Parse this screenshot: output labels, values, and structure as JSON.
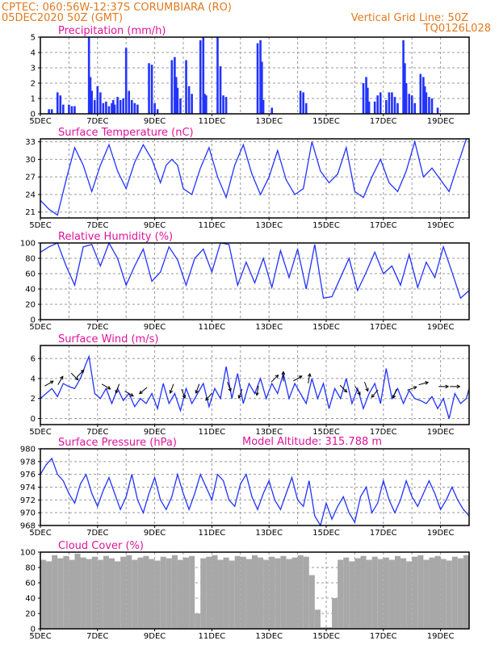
{
  "header": {
    "line1_left": "CPTEC:   060:56W-12:37S   CORUMBIARA (RO)",
    "line2_left": "05DEC2020 50Z (GMT)",
    "line1_right": "Vertical Grid Line: 50Z",
    "line2_right": "TQ0126L028",
    "model_altitude": "Model Altitude: 315.788 m"
  },
  "colors": {
    "header": "#e07a1f",
    "title": "#e0149a",
    "series": "#2233ff",
    "cloud": "#a8a8a8",
    "frame": "#000000",
    "grid": "#999999"
  },
  "chart_data": [
    {
      "type": "bar",
      "title": "Precipitation (mm/h)",
      "x_unit": "day of DEC 2020",
      "x_range": [
        5,
        20
      ],
      "x_ticks": [
        "5DEC",
        "7DEC",
        "9DEC",
        "11DEC",
        "13DEC",
        "15DEC",
        "17DEC",
        "19DEC"
      ],
      "y_ticks": [
        "0",
        "1",
        "2",
        "3",
        "4",
        "5"
      ],
      "ylim": [
        0,
        5
      ],
      "x": [
        5.3,
        5.4,
        5.6,
        5.7,
        5.8,
        6.0,
        6.1,
        6.2,
        6.7,
        6.75,
        6.8,
        6.9,
        7.0,
        7.1,
        7.2,
        7.3,
        7.4,
        7.5,
        7.55,
        7.6,
        7.7,
        7.8,
        7.9,
        8.0,
        8.1,
        8.2,
        8.3,
        8.4,
        8.8,
        8.9,
        9.0,
        9.1,
        9.6,
        9.7,
        9.75,
        9.8,
        9.9,
        10.1,
        10.2,
        10.3,
        10.6,
        10.7,
        10.75,
        10.8,
        11.2,
        11.3,
        11.4,
        11.5,
        12.6,
        12.7,
        12.75,
        12.8,
        13.1,
        14.1,
        14.2,
        14.3,
        16.3,
        16.4,
        16.45,
        16.5,
        16.7,
        16.8,
        16.9,
        17.1,
        17.2,
        17.3,
        17.4,
        17.5,
        17.7,
        17.75,
        17.8,
        17.9,
        18.0,
        18.1,
        18.3,
        18.4,
        18.45,
        18.5,
        18.6,
        18.7,
        18.9
      ],
      "values": [
        0.3,
        0.3,
        1.4,
        1.2,
        0.6,
        0.6,
        0.5,
        0.5,
        5.0,
        2.4,
        1.5,
        0.9,
        1.8,
        1.4,
        0.7,
        0.8,
        0.5,
        0.7,
        0.9,
        0.6,
        1.1,
        0.9,
        1.0,
        4.3,
        1.5,
        0.9,
        0.7,
        0.6,
        3.3,
        3.2,
        0.7,
        0.3,
        3.5,
        3.7,
        2.4,
        1.7,
        1.0,
        3.5,
        1.8,
        1.3,
        4.8,
        5.0,
        1.3,
        1.2,
        5.0,
        3.1,
        1.2,
        1.1,
        4.6,
        4.8,
        3.4,
        0.9,
        0.4,
        1.5,
        1.4,
        0.7,
        2.0,
        2.4,
        1.7,
        0.8,
        0.8,
        1.2,
        1.4,
        0.9,
        1.4,
        1.4,
        1.1,
        0.7,
        4.8,
        3.3,
        2.0,
        1.3,
        1.2,
        0.7,
        2.6,
        2.4,
        1.8,
        1.4,
        1.1,
        1.0,
        0.4
      ]
    },
    {
      "type": "line",
      "title": "Surface Temperature (nC)",
      "x_unit": "day of DEC 2020",
      "x_range": [
        5,
        20
      ],
      "x_ticks": [
        "5DEC",
        "7DEC",
        "9DEC",
        "11DEC",
        "13DEC",
        "15DEC",
        "17DEC",
        "19DEC"
      ],
      "y_ticks": [
        "21",
        "24",
        "27",
        "30",
        "33"
      ],
      "ylim": [
        20,
        33.5
      ],
      "x": [
        5.0,
        5.3,
        5.6,
        5.9,
        6.2,
        6.5,
        6.8,
        7.1,
        7.4,
        7.7,
        8.0,
        8.3,
        8.6,
        8.9,
        9.2,
        9.4,
        9.6,
        9.8,
        10.0,
        10.3,
        10.6,
        10.9,
        11.2,
        11.5,
        11.8,
        12.1,
        12.4,
        12.7,
        13.0,
        13.3,
        13.6,
        13.9,
        14.2,
        14.5,
        14.8,
        15.1,
        15.4,
        15.7,
        16.0,
        16.3,
        16.6,
        16.9,
        17.2,
        17.5,
        17.8,
        18.1,
        18.4,
        18.7,
        19.0,
        19.3,
        19.6,
        19.9,
        20.0
      ],
      "values": [
        23.0,
        21.5,
        20.5,
        26.5,
        32.0,
        29.0,
        24.5,
        29.0,
        32.5,
        28.0,
        25.0,
        29.5,
        32.5,
        30.0,
        26.0,
        29.0,
        30.0,
        29.0,
        25.0,
        24.0,
        28.5,
        32.0,
        27.0,
        23.5,
        29.0,
        32.5,
        27.5,
        24.0,
        27.0,
        31.5,
        26.5,
        24.0,
        25.0,
        33.0,
        28.0,
        26.0,
        27.5,
        32.0,
        24.5,
        23.5,
        27.0,
        30.0,
        26.0,
        24.5,
        28.0,
        33.0,
        27.0,
        28.5,
        26.5,
        24.5,
        29.0,
        33.5,
        33.5
      ]
    },
    {
      "type": "line",
      "title": "Relative Humidity (%)",
      "x_unit": "day of DEC 2020",
      "x_range": [
        5,
        20
      ],
      "x_ticks": [
        "5DEC",
        "7DEC",
        "9DEC",
        "11DEC",
        "13DEC",
        "15DEC",
        "17DEC",
        "19DEC"
      ],
      "y_ticks": [
        "0",
        "20",
        "40",
        "60",
        "80",
        "100"
      ],
      "ylim": [
        0,
        100
      ],
      "x": [
        5.0,
        5.3,
        5.6,
        5.9,
        6.2,
        6.5,
        6.8,
        7.1,
        7.4,
        7.7,
        8.0,
        8.3,
        8.6,
        8.9,
        9.2,
        9.5,
        9.8,
        10.1,
        10.4,
        10.7,
        11.0,
        11.3,
        11.6,
        11.9,
        12.2,
        12.5,
        12.8,
        13.1,
        13.4,
        13.7,
        14.0,
        14.3,
        14.6,
        14.9,
        15.2,
        15.5,
        15.8,
        16.1,
        16.4,
        16.7,
        17.0,
        17.3,
        17.6,
        17.9,
        18.2,
        18.5,
        18.8,
        19.1,
        19.4,
        19.7,
        20.0
      ],
      "values": [
        88,
        95,
        100,
        70,
        45,
        95,
        98,
        70,
        100,
        80,
        45,
        70,
        92,
        50,
        62,
        95,
        78,
        45,
        80,
        92,
        62,
        100,
        98,
        45,
        75,
        48,
        80,
        42,
        90,
        55,
        92,
        40,
        98,
        28,
        30,
        55,
        80,
        38,
        62,
        88,
        60,
        70,
        45,
        85,
        42,
        75,
        55,
        95,
        62,
        28,
        38
      ]
    },
    {
      "type": "line",
      "title": "Surface Wind (m/s)",
      "x_unit": "day of DEC 2020",
      "x_range": [
        5,
        20
      ],
      "x_ticks": [
        "5DEC",
        "7DEC",
        "9DEC",
        "11DEC",
        "13DEC",
        "15DEC",
        "17DEC",
        "19DEC"
      ],
      "y_ticks": [
        "0",
        "2",
        "4",
        "6"
      ],
      "ylim": [
        -0.6,
        7.3
      ],
      "x": [
        5.0,
        5.2,
        5.4,
        5.6,
        5.8,
        6.0,
        6.2,
        6.4,
        6.6,
        6.7,
        6.9,
        7.1,
        7.3,
        7.5,
        7.7,
        7.9,
        8.1,
        8.3,
        8.5,
        8.7,
        8.9,
        9.1,
        9.3,
        9.5,
        9.7,
        9.9,
        10.1,
        10.3,
        10.5,
        10.7,
        10.9,
        11.1,
        11.3,
        11.5,
        11.7,
        11.9,
        12.1,
        12.3,
        12.5,
        12.7,
        12.9,
        13.1,
        13.3,
        13.5,
        13.7,
        13.9,
        14.1,
        14.3,
        14.5,
        14.7,
        14.9,
        15.1,
        15.3,
        15.5,
        15.7,
        15.9,
        16.1,
        16.3,
        16.5,
        16.7,
        16.9,
        17.1,
        17.3,
        17.5,
        17.7,
        17.9,
        18.1,
        18.3,
        18.5,
        18.7,
        18.9,
        19.1,
        19.3,
        19.5,
        19.7,
        19.9,
        20.0
      ],
      "values": [
        2.0,
        2.5,
        3.0,
        2.2,
        3.5,
        3.2,
        3.0,
        4.0,
        5.5,
        6.2,
        2.5,
        2.0,
        3.0,
        1.5,
        3.0,
        1.8,
        2.5,
        1.2,
        2.0,
        1.5,
        2.5,
        1.0,
        3.5,
        1.5,
        2.5,
        0.8,
        3.0,
        1.5,
        2.5,
        3.5,
        1.2,
        3.0,
        2.0,
        5.2,
        2.0,
        4.5,
        1.5,
        3.5,
        2.5,
        4.0,
        2.0,
        3.5,
        2.5,
        4.5,
        2.0,
        3.5,
        2.5,
        1.5,
        4.0,
        2.0,
        3.5,
        1.0,
        3.0,
        2.0,
        4.0,
        1.5,
        3.0,
        1.0,
        2.5,
        3.5,
        1.5,
        5.0,
        2.0,
        3.0,
        1.5,
        2.8,
        2.0,
        1.8,
        1.5,
        2.2,
        1.0,
        2.0,
        0.0,
        2.5,
        1.5,
        2.0,
        3.0
      ]
    },
    {
      "type": "line",
      "title": "Surface Pressure (hPa)",
      "x_unit": "day of DEC 2020",
      "x_range": [
        5,
        20
      ],
      "x_ticks": [
        "5DEC",
        "7DEC",
        "9DEC",
        "11DEC",
        "13DEC",
        "15DEC",
        "17DEC",
        "19DEC"
      ],
      "y_ticks": [
        "968",
        "970",
        "972",
        "974",
        "976",
        "978",
        "980"
      ],
      "ylim": [
        968,
        980
      ],
      "x": [
        5.0,
        5.2,
        5.4,
        5.6,
        5.8,
        6.0,
        6.2,
        6.4,
        6.6,
        6.8,
        7.0,
        7.2,
        7.4,
        7.6,
        7.8,
        8.0,
        8.2,
        8.4,
        8.6,
        8.8,
        9.0,
        9.2,
        9.4,
        9.6,
        9.8,
        10.0,
        10.2,
        10.4,
        10.6,
        10.8,
        11.0,
        11.2,
        11.4,
        11.6,
        11.8,
        12.0,
        12.2,
        12.4,
        12.6,
        12.8,
        13.0,
        13.2,
        13.4,
        13.6,
        13.8,
        14.0,
        14.2,
        14.4,
        14.6,
        14.8,
        15.0,
        15.2,
        15.4,
        15.6,
        15.8,
        16.0,
        16.2,
        16.4,
        16.6,
        16.8,
        17.0,
        17.2,
        17.4,
        17.6,
        17.8,
        18.0,
        18.2,
        18.4,
        18.6,
        18.8,
        19.0,
        19.2,
        19.4,
        19.6,
        19.8,
        20.0
      ],
      "values": [
        976,
        977.5,
        978.5,
        976,
        975,
        973,
        971.5,
        974.5,
        976,
        973,
        971,
        973.5,
        975.5,
        973,
        970.5,
        972.5,
        976,
        972,
        970,
        973,
        975.5,
        972,
        970.5,
        972.5,
        976,
        973,
        970.5,
        973,
        976,
        974,
        972,
        976,
        975,
        972,
        971,
        974.5,
        976,
        972.5,
        970.5,
        973,
        975,
        972,
        970.5,
        973,
        975.5,
        972,
        971,
        975,
        969.5,
        968,
        971.5,
        969,
        971,
        972.5,
        970,
        968.5,
        972.5,
        974,
        970,
        971.5,
        975,
        972,
        970,
        972,
        975,
        972.5,
        971,
        973,
        975,
        973,
        970.5,
        972,
        974,
        972,
        970.5,
        969.5
      ]
    },
    {
      "type": "bar",
      "title": "Cloud Cover (%)",
      "x_unit": "day of DEC 2020",
      "x_range": [
        5,
        20
      ],
      "x_ticks": [
        "5DEC",
        "7DEC",
        "9DEC",
        "11DEC",
        "13DEC",
        "15DEC",
        "17DEC",
        "19DEC"
      ],
      "y_ticks": [
        "0",
        "20",
        "40",
        "60",
        "80",
        "100"
      ],
      "ylim": [
        0,
        100
      ],
      "x": [
        5.0,
        5.2,
        5.4,
        5.6,
        5.8,
        6.0,
        6.2,
        6.4,
        6.6,
        6.8,
        7.0,
        7.2,
        7.4,
        7.6,
        7.8,
        8.0,
        8.2,
        8.4,
        8.6,
        8.8,
        9.0,
        9.2,
        9.4,
        9.6,
        9.8,
        10.0,
        10.2,
        10.4,
        10.6,
        10.8,
        11.0,
        11.2,
        11.4,
        11.6,
        11.8,
        12.0,
        12.2,
        12.4,
        12.6,
        12.8,
        13.0,
        13.2,
        13.4,
        13.6,
        13.8,
        14.0,
        14.2,
        14.4,
        14.6,
        14.8,
        15.0,
        15.2,
        15.4,
        15.6,
        15.8,
        16.0,
        16.2,
        16.4,
        16.6,
        16.8,
        17.0,
        17.2,
        17.4,
        17.6,
        17.8,
        18.0,
        18.2,
        18.4,
        18.6,
        18.8,
        19.0,
        19.2,
        19.4,
        19.6,
        19.8
      ],
      "values": [
        90,
        88,
        96,
        92,
        95,
        90,
        98,
        93,
        91,
        94,
        90,
        95,
        92,
        88,
        94,
        96,
        90,
        93,
        95,
        91,
        89,
        94,
        92,
        96,
        90,
        93,
        95,
        20,
        92,
        94,
        96,
        90,
        93,
        89,
        95,
        94,
        91,
        96,
        93,
        90,
        94,
        92,
        95,
        91,
        93,
        96,
        94,
        70,
        25,
        2,
        2,
        40,
        90,
        93,
        88,
        92,
        95,
        90,
        94,
        91,
        93,
        90,
        95,
        92,
        88,
        94,
        96,
        90,
        93,
        95,
        91,
        89,
        94,
        92,
        96
      ]
    }
  ],
  "wind_arrows": [
    {
      "x": 5.3,
      "value": 3.5,
      "dir_deg": 60
    },
    {
      "x": 5.7,
      "value": 3.8,
      "dir_deg": 30
    },
    {
      "x": 6.2,
      "value": 4.2,
      "dir_deg": 135
    },
    {
      "x": 6.4,
      "value": 4.5,
      "dir_deg": 45
    },
    {
      "x": 7.3,
      "value": 3.2,
      "dir_deg": 120
    },
    {
      "x": 7.7,
      "value": 3.0,
      "dir_deg": 200
    },
    {
      "x": 8.1,
      "value": 2.5,
      "dir_deg": 120
    },
    {
      "x": 8.6,
      "value": 2.8,
      "dir_deg": 230
    },
    {
      "x": 9.6,
      "value": 3.0,
      "dir_deg": 200
    },
    {
      "x": 10.0,
      "value": 2.5,
      "dir_deg": 160
    },
    {
      "x": 10.5,
      "value": 3.0,
      "dir_deg": 200
    },
    {
      "x": 10.9,
      "value": 2.2,
      "dir_deg": 220
    },
    {
      "x": 11.6,
      "value": 3.2,
      "dir_deg": 160
    },
    {
      "x": 12.0,
      "value": 2.5,
      "dir_deg": 200
    },
    {
      "x": 12.6,
      "value": 2.8,
      "dir_deg": 190
    },
    {
      "x": 13.2,
      "value": 4.0,
      "dir_deg": 45
    },
    {
      "x": 13.5,
      "value": 4.2,
      "dir_deg": 0
    },
    {
      "x": 14.0,
      "value": 4.0,
      "dir_deg": 60
    },
    {
      "x": 14.4,
      "value": 4.0,
      "dir_deg": 10
    },
    {
      "x": 15.6,
      "value": 3.0,
      "dir_deg": 135
    },
    {
      "x": 16.1,
      "value": 2.8,
      "dir_deg": 150
    },
    {
      "x": 16.4,
      "value": 3.2,
      "dir_deg": 160
    },
    {
      "x": 16.7,
      "value": 2.5,
      "dir_deg": 220
    },
    {
      "x": 17.4,
      "value": 2.5,
      "dir_deg": 200
    },
    {
      "x": 18.0,
      "value": 3.0,
      "dir_deg": 70
    },
    {
      "x": 18.4,
      "value": 3.5,
      "dir_deg": 75
    },
    {
      "x": 19.1,
      "value": 3.2,
      "dir_deg": 90
    },
    {
      "x": 19.5,
      "value": 3.2,
      "dir_deg": 90
    }
  ]
}
